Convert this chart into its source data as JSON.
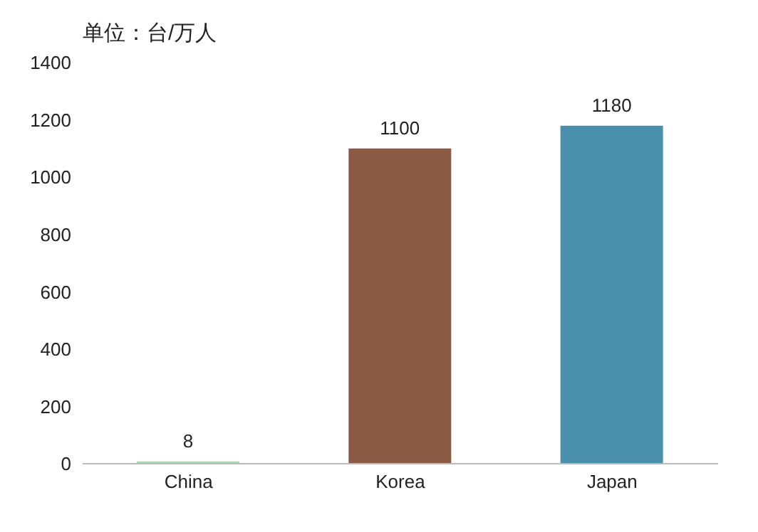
{
  "chart_data": {
    "type": "bar",
    "ylabel": "单位：台/万人",
    "categories": [
      "China",
      "Korea",
      "Japan"
    ],
    "values": [
      8,
      1100,
      1180
    ],
    "colors": [
      "#a8d8b0",
      "#8b5a44",
      "#4a8fab"
    ],
    "ylim": [
      0,
      1400
    ],
    "yticks": [
      0,
      200,
      400,
      600,
      800,
      1000,
      1200,
      1400
    ],
    "data_labels": true,
    "grid": false
  }
}
